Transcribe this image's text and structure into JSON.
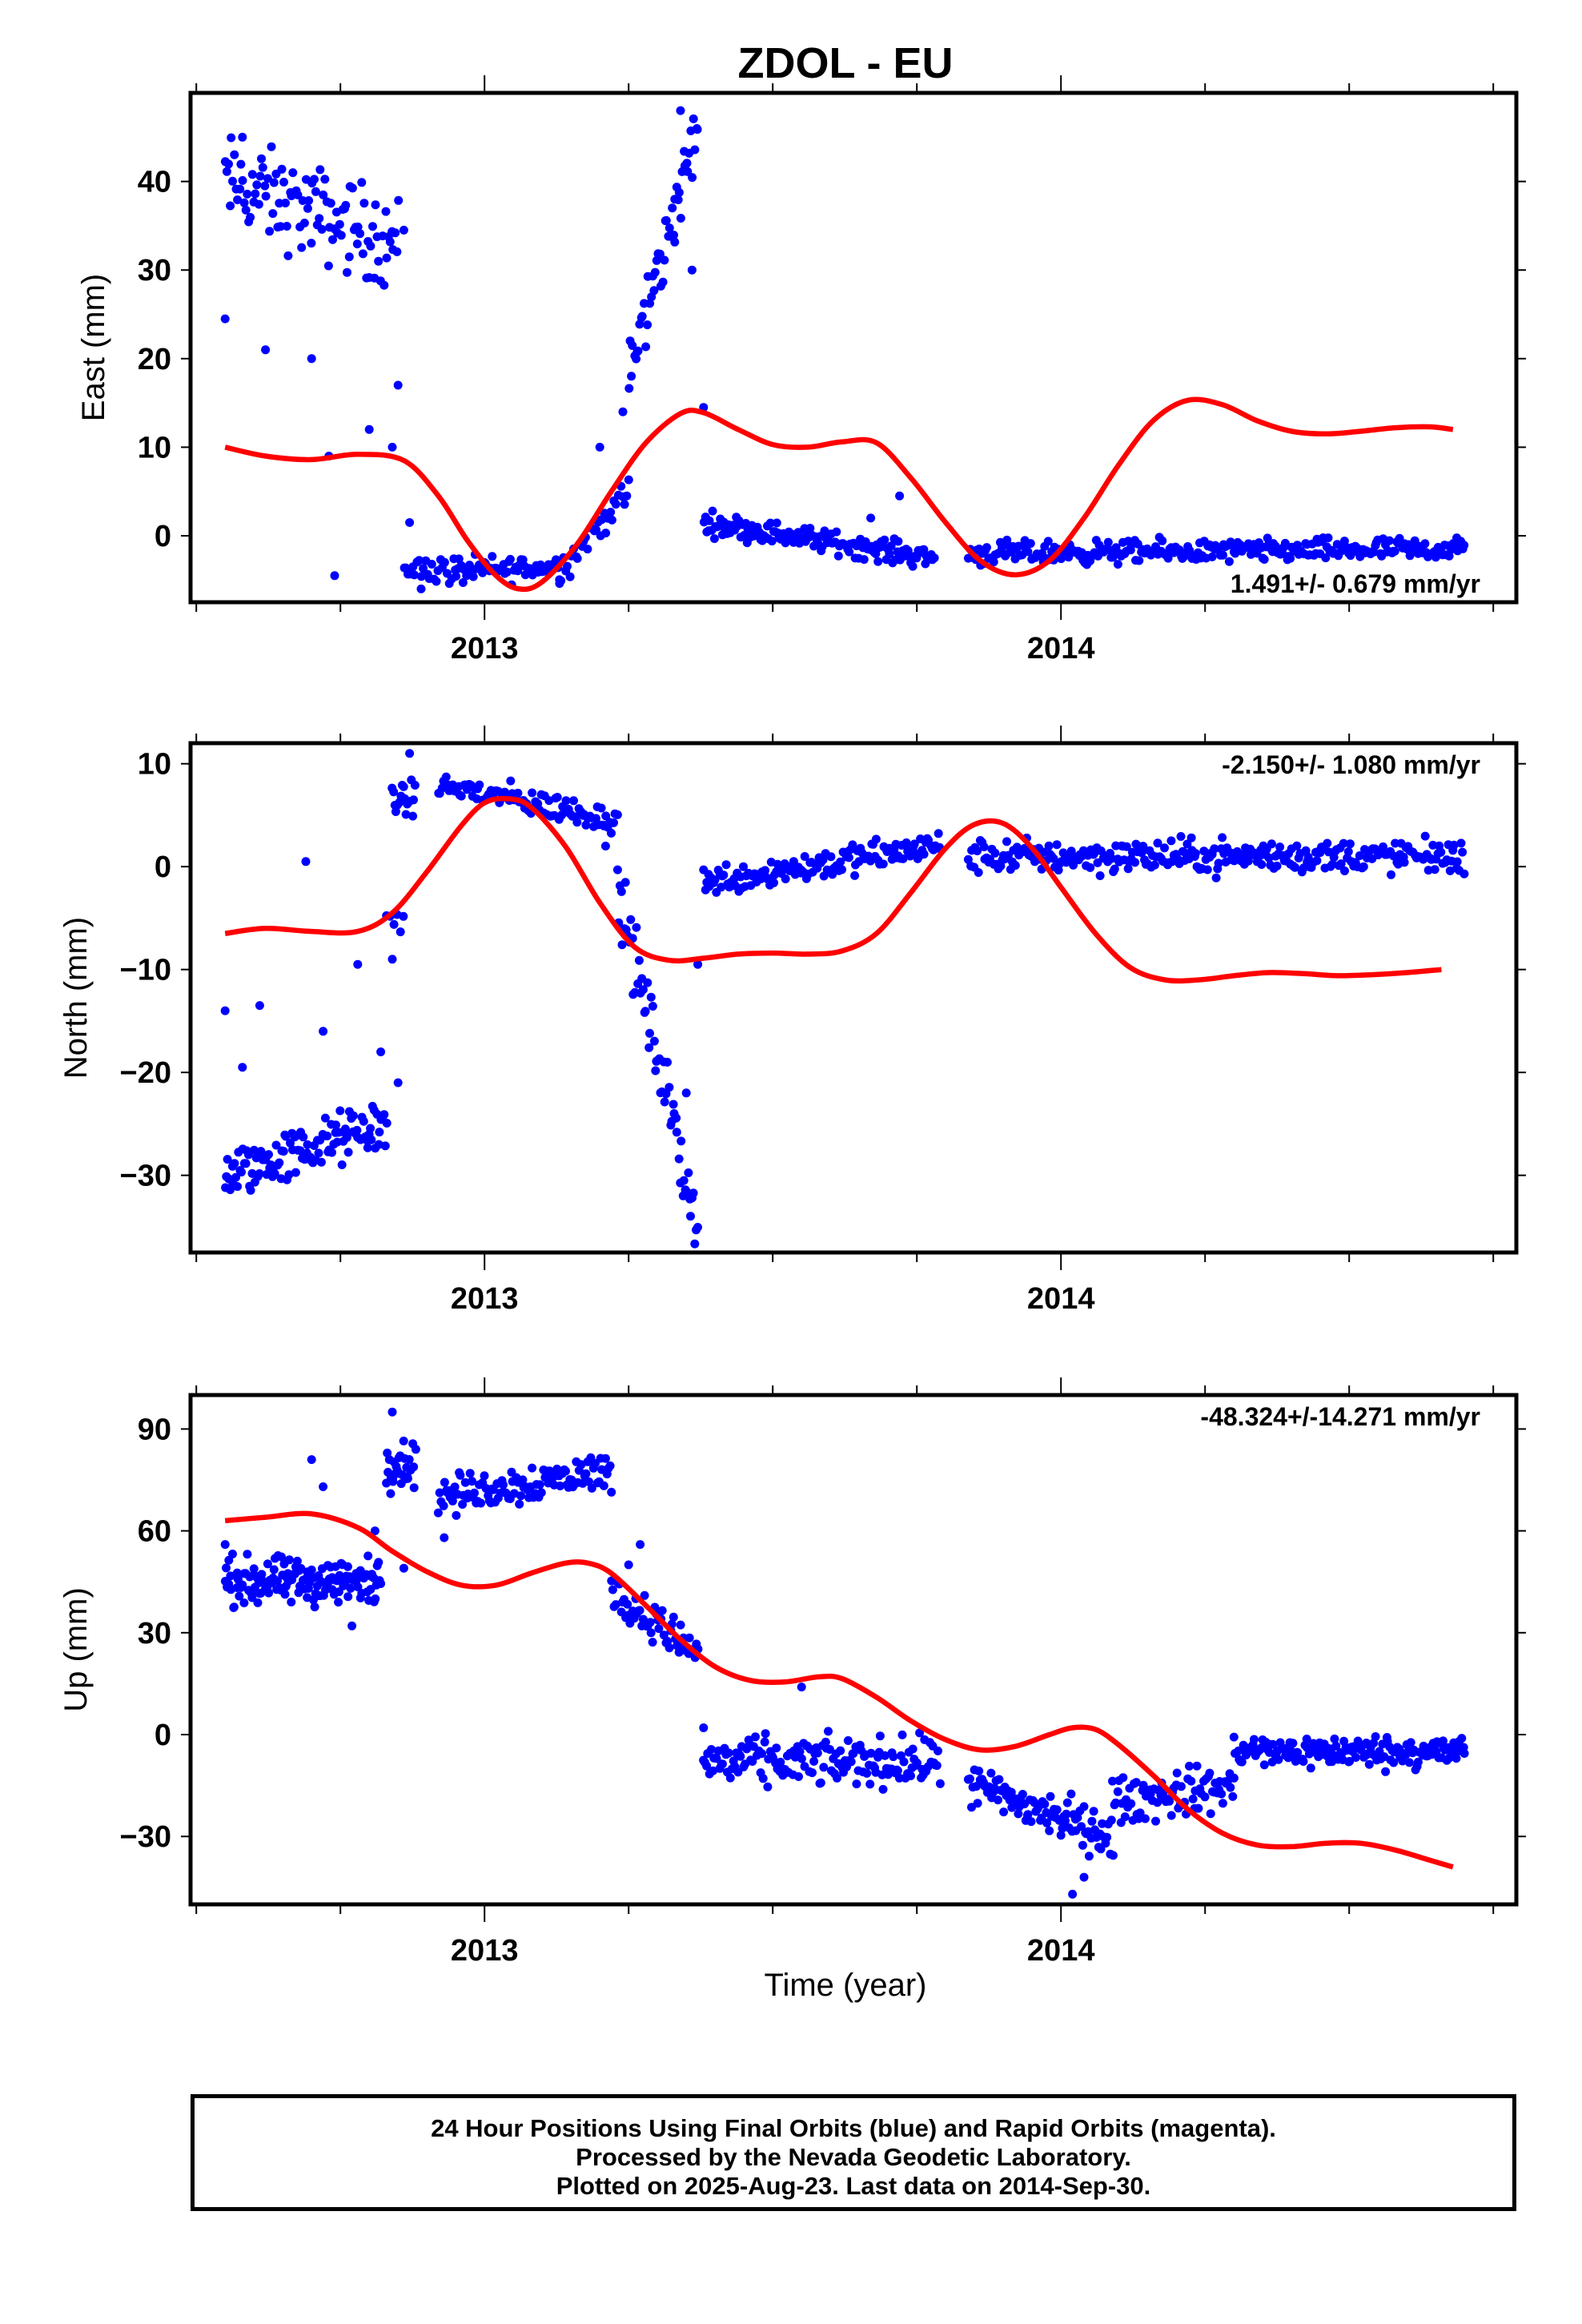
{
  "chart_data": {
    "type": "scatter",
    "title": "ZDOL - EU",
    "xlabel": "Time (year)",
    "x_tick_labels": [
      "2013",
      "2014"
    ],
    "xlim": [
      2012.49,
      2014.79
    ],
    "colors": {
      "points": "#0000ff",
      "fit": "#ff0000"
    },
    "panels": [
      {
        "name": "east",
        "ylabel": "East (mm)",
        "ylim": [
          -7.5,
          50
        ],
        "yticks": [
          0,
          10,
          20,
          30,
          40
        ],
        "rate": "1.491+/- 0.679 mm/yr",
        "fit_curve": [
          [
            2012.55,
            10.0
          ],
          [
            2012.62,
            9.0
          ],
          [
            2012.7,
            8.6
          ],
          [
            2012.78,
            9.2
          ],
          [
            2012.86,
            8.5
          ],
          [
            2012.92,
            4.5
          ],
          [
            2012.97,
            -0.5
          ],
          [
            2013.02,
            -4.5
          ],
          [
            2013.06,
            -6.0
          ],
          [
            2013.1,
            -5.2
          ],
          [
            2013.16,
            -1.0
          ],
          [
            2013.22,
            5.0
          ],
          [
            2013.28,
            10.5
          ],
          [
            2013.34,
            13.8
          ],
          [
            2013.38,
            13.9
          ],
          [
            2013.44,
            12.0
          ],
          [
            2013.5,
            10.3
          ],
          [
            2013.56,
            10.0
          ],
          [
            2013.62,
            10.6
          ],
          [
            2013.68,
            10.5
          ],
          [
            2013.74,
            6.5
          ],
          [
            2013.8,
            1.5
          ],
          [
            2013.86,
            -2.8
          ],
          [
            2013.92,
            -4.4
          ],
          [
            2013.98,
            -2.8
          ],
          [
            2014.04,
            2.0
          ],
          [
            2014.1,
            8.0
          ],
          [
            2014.16,
            13.0
          ],
          [
            2014.22,
            15.3
          ],
          [
            2014.28,
            14.8
          ],
          [
            2014.34,
            13.0
          ],
          [
            2014.4,
            11.8
          ],
          [
            2014.46,
            11.5
          ],
          [
            2014.52,
            11.8
          ],
          [
            2014.58,
            12.2
          ],
          [
            2014.64,
            12.3
          ],
          [
            2014.68,
            12.0
          ]
        ],
        "segments": [
          {
            "x0": 2012.55,
            "x1": 2012.85,
            "y0": 40,
            "y1": 33,
            "spread": 4.5,
            "n": 110,
            "outliers": [
              [
                2012.55,
                24.5
              ],
              [
                2012.58,
                45
              ],
              [
                2012.62,
                21
              ],
              [
                2012.7,
                20
              ],
              [
                2012.73,
                9
              ],
              [
                2012.74,
                -4.5
              ],
              [
                2012.8,
                12
              ],
              [
                2012.84,
                10
              ],
              [
                2012.86,
                34.5
              ],
              [
                2012.85,
                17
              ]
            ]
          },
          {
            "x0": 2012.86,
            "x1": 2012.95,
            "y0": -3.5,
            "y1": -4,
            "spread": 1.5,
            "n": 25,
            "outliers": [
              [
                2012.87,
                1.5
              ],
              [
                2012.89,
                -6
              ]
            ]
          },
          {
            "x0": 2012.95,
            "x1": 2013.13,
            "y0": -4,
            "y1": -3.5,
            "spread": 1.3,
            "n": 60,
            "outliers": []
          },
          {
            "x0": 2013.13,
            "x1": 2013.25,
            "y0": -4,
            "y1": 5,
            "spread": 1.5,
            "n": 35,
            "outliers": [
              [
                2013.2,
                10
              ],
              [
                2013.24,
                14
              ]
            ]
          },
          {
            "x0": 2013.25,
            "x1": 2013.37,
            "y0": 18,
            "y1": 46,
            "spread": 3.5,
            "n": 50,
            "outliers": [
              [
                2013.33,
                38
              ],
              [
                2013.36,
                30
              ],
              [
                2013.38,
                14.5
              ],
              [
                2013.34,
                48
              ]
            ]
          },
          {
            "x0": 2013.38,
            "x1": 2013.78,
            "y0": 1.5,
            "y1": -2.5,
            "spread": 1.1,
            "n": 150,
            "outliers": [
              [
                2013.72,
                4.5
              ],
              [
                2013.67,
                2
              ]
            ]
          },
          {
            "x0": 2013.84,
            "x1": 2014.7,
            "y0": -2,
            "y1": -1.5,
            "spread": 1.1,
            "n": 300,
            "outliers": []
          }
        ]
      },
      {
        "name": "north",
        "ylabel": "North (mm)",
        "ylim": [
          -37.5,
          12
        ],
        "yticks": [
          -30,
          -20,
          -10,
          0,
          10
        ],
        "rate": "-2.150+/- 1.080 mm/yr",
        "fit_curve": [
          [
            2012.55,
            -6.5
          ],
          [
            2012.62,
            -6.0
          ],
          [
            2012.7,
            -6.3
          ],
          [
            2012.78,
            -6.3
          ],
          [
            2012.84,
            -4.5
          ],
          [
            2012.9,
            -0.5
          ],
          [
            2012.96,
            4.0
          ],
          [
            2013.0,
            6.2
          ],
          [
            2013.04,
            6.6
          ],
          [
            2013.08,
            5.8
          ],
          [
            2013.14,
            2.0
          ],
          [
            2013.2,
            -3.5
          ],
          [
            2013.26,
            -7.8
          ],
          [
            2013.32,
            -9.1
          ],
          [
            2013.38,
            -8.9
          ],
          [
            2013.44,
            -8.5
          ],
          [
            2013.5,
            -8.4
          ],
          [
            2013.56,
            -8.5
          ],
          [
            2013.62,
            -8.2
          ],
          [
            2013.68,
            -6.5
          ],
          [
            2013.74,
            -2.5
          ],
          [
            2013.8,
            1.8
          ],
          [
            2013.85,
            4.1
          ],
          [
            2013.9,
            4.2
          ],
          [
            2013.95,
            1.8
          ],
          [
            2014.0,
            -2.0
          ],
          [
            2014.06,
            -6.5
          ],
          [
            2014.12,
            -9.8
          ],
          [
            2014.18,
            -11.0
          ],
          [
            2014.24,
            -11.0
          ],
          [
            2014.3,
            -10.6
          ],
          [
            2014.36,
            -10.3
          ],
          [
            2014.42,
            -10.4
          ],
          [
            2014.48,
            -10.6
          ],
          [
            2014.54,
            -10.5
          ],
          [
            2014.6,
            -10.3
          ],
          [
            2014.66,
            -10.0
          ]
        ],
        "segments": [
          {
            "x0": 2012.55,
            "x1": 2012.83,
            "y0": -30,
            "y1": -25,
            "spread": 2.2,
            "n": 120,
            "outliers": [
              [
                2012.55,
                -14
              ],
              [
                2012.58,
                -19.5
              ],
              [
                2012.61,
                -13.5
              ],
              [
                2012.69,
                0.5
              ],
              [
                2012.72,
                -16
              ],
              [
                2012.78,
                -9.5
              ],
              [
                2012.82,
                -18
              ]
            ]
          },
          {
            "x0": 2012.83,
            "x1": 2012.86,
            "y0": -5,
            "y1": -6,
            "spread": 1.5,
            "n": 6,
            "outliers": [
              [
                2012.85,
                -21
              ],
              [
                2012.84,
                -9
              ]
            ]
          },
          {
            "x0": 2012.84,
            "x1": 2012.88,
            "y0": 7,
            "y1": 6,
            "spread": 1.5,
            "n": 18,
            "outliers": [
              [
                2012.87,
                11
              ]
            ]
          },
          {
            "x0": 2012.92,
            "x1": 2013.23,
            "y0": 8,
            "y1": 4.5,
            "spread": 1.2,
            "n": 100,
            "outliers": [
              [
                2013.21,
                2
              ]
            ]
          },
          {
            "x0": 2013.23,
            "x1": 2013.37,
            "y0": -2,
            "y1": -35,
            "spread": 3,
            "n": 60,
            "outliers": [
              [
                2013.35,
                -22
              ],
              [
                2013.37,
                -9.5
              ]
            ]
          },
          {
            "x0": 2013.38,
            "x1": 2013.79,
            "y0": -1.5,
            "y1": 2,
            "spread": 1.3,
            "n": 150,
            "outliers": []
          },
          {
            "x0": 2013.84,
            "x1": 2014.7,
            "y0": 1,
            "y1": 1,
            "spread": 1.4,
            "n": 300,
            "outliers": []
          }
        ]
      },
      {
        "name": "up",
        "ylabel": "Up (mm)",
        "ylim": [
          -50,
          100
        ],
        "yticks": [
          -30,
          0,
          30,
          60,
          90
        ],
        "rate": "-48.324+/-14.271 mm/yr",
        "fit_curve": [
          [
            2012.55,
            63
          ],
          [
            2012.62,
            64
          ],
          [
            2012.7,
            65
          ],
          [
            2012.78,
            61
          ],
          [
            2012.84,
            54
          ],
          [
            2012.9,
            48
          ],
          [
            2012.96,
            44
          ],
          [
            2013.02,
            44
          ],
          [
            2013.08,
            47.5
          ],
          [
            2013.14,
            50.5
          ],
          [
            2013.18,
            50.5
          ],
          [
            2013.22,
            47.5
          ],
          [
            2013.28,
            38
          ],
          [
            2013.34,
            28
          ],
          [
            2013.4,
            20
          ],
          [
            2013.46,
            16
          ],
          [
            2013.52,
            15.5
          ],
          [
            2013.58,
            17
          ],
          [
            2013.62,
            16.5
          ],
          [
            2013.68,
            11
          ],
          [
            2013.74,
            4
          ],
          [
            2013.8,
            -1.5
          ],
          [
            2013.86,
            -4.5
          ],
          [
            2013.92,
            -3.5
          ],
          [
            2013.98,
            0
          ],
          [
            2014.02,
            2
          ],
          [
            2014.06,
            1.5
          ],
          [
            2014.1,
            -3
          ],
          [
            2014.16,
            -12
          ],
          [
            2014.22,
            -22
          ],
          [
            2014.28,
            -29
          ],
          [
            2014.34,
            -32.5
          ],
          [
            2014.4,
            -33
          ],
          [
            2014.46,
            -32
          ],
          [
            2014.52,
            -32
          ],
          [
            2014.58,
            -34
          ],
          [
            2014.64,
            -37
          ],
          [
            2014.68,
            -39
          ]
        ],
        "segments": [
          {
            "x0": 2012.55,
            "x1": 2012.82,
            "y0": 45,
            "y1": 45,
            "spread": 6,
            "n": 150,
            "outliers": [
              [
                2012.55,
                56
              ],
              [
                2012.7,
                81
              ],
              [
                2012.72,
                73
              ],
              [
                2012.77,
                32
              ],
              [
                2012.81,
                60
              ]
            ]
          },
          {
            "x0": 2012.83,
            "x1": 2012.88,
            "y0": 80,
            "y1": 80,
            "spread": 6,
            "n": 30,
            "outliers": [
              [
                2012.84,
                95
              ],
              [
                2012.86,
                49
              ]
            ]
          },
          {
            "x0": 2012.92,
            "x1": 2013.22,
            "y0": 70,
            "y1": 78,
            "spread": 5,
            "n": 110,
            "outliers": [
              [
                2012.93,
                58
              ]
            ]
          },
          {
            "x0": 2013.22,
            "x1": 2013.37,
            "y0": 42,
            "y1": 24,
            "spread": 5,
            "n": 55,
            "outliers": [
              [
                2013.25,
                50
              ],
              [
                2013.27,
                56
              ]
            ]
          },
          {
            "x0": 2013.38,
            "x1": 2013.79,
            "y0": -8,
            "y1": -8,
            "spread": 6,
            "n": 160,
            "outliers": [
              [
                2013.38,
                2
              ],
              [
                2013.55,
                14
              ]
            ]
          },
          {
            "x0": 2013.84,
            "x1": 2014.09,
            "y0": -15,
            "y1": -30,
            "spread": 6,
            "n": 100,
            "outliers": [
              [
                2014.02,
                -47
              ]
            ]
          },
          {
            "x0": 2014.09,
            "x1": 2014.3,
            "y0": -20,
            "y1": -15,
            "spread": 6,
            "n": 80,
            "outliers": [
              [
                2014.04,
                -42
              ]
            ]
          },
          {
            "x0": 2014.3,
            "x1": 2014.7,
            "y0": -5,
            "y1": -5,
            "spread": 4,
            "n": 170,
            "outliers": []
          }
        ]
      }
    ]
  },
  "footer": {
    "line1": "24 Hour Positions Using Final Orbits (blue) and Rapid Orbits (magenta).",
    "line2": "Processed by the Nevada Geodetic Laboratory.",
    "line3": "Plotted on 2025-Aug-23. Last data on 2014-Sep-30."
  }
}
